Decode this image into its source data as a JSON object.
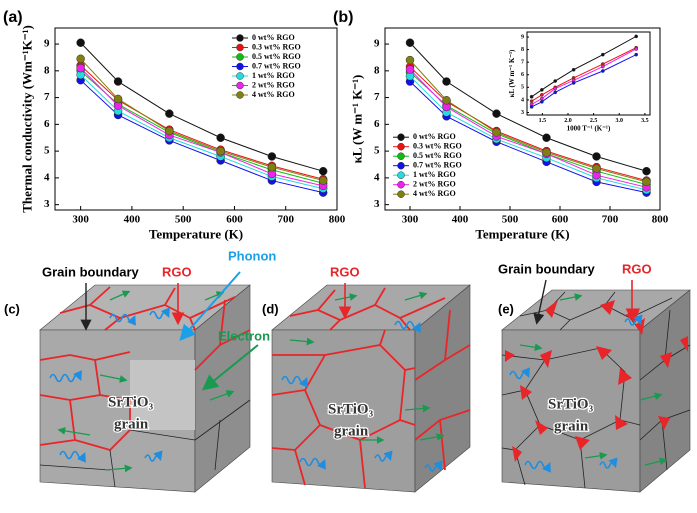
{
  "chart_data": [
    {
      "type": "line",
      "panel_label": "(a)",
      "xlabel": "Temperature (K)",
      "ylabel": "Thermal conductivity (Wm⁻¹K⁻¹)",
      "x": [
        300,
        373,
        473,
        573,
        673,
        773
      ],
      "xlim": [
        250,
        800
      ],
      "xticks": [
        300,
        400,
        500,
        600,
        700,
        800
      ],
      "ylim": [
        2.8,
        9.6
      ],
      "yticks": [
        3,
        4,
        5,
        6,
        7,
        8,
        9
      ],
      "legend": "upper right",
      "series": [
        {
          "name": "0 wt% RGO",
          "color": "#111111",
          "values": [
            9.05,
            7.6,
            6.4,
            5.5,
            4.8,
            4.25
          ]
        },
        {
          "name": "0.3 wt% RGO",
          "color": "#ee1111",
          "values": [
            8.2,
            6.9,
            5.8,
            5.05,
            4.45,
            3.95
          ]
        },
        {
          "name": "0.5 wt% RGO",
          "color": "#11bb11",
          "values": [
            8.0,
            6.75,
            5.7,
            4.95,
            4.3,
            3.8
          ]
        },
        {
          "name": "0.7 wt% RGO",
          "color": "#1111ee",
          "values": [
            7.65,
            6.35,
            5.4,
            4.65,
            3.9,
            3.45
          ]
        },
        {
          "name": "1 wt% RGO",
          "color": "#22dddd",
          "values": [
            7.85,
            6.5,
            5.5,
            4.8,
            4.05,
            3.6
          ]
        },
        {
          "name": "2 wt% RGO",
          "color": "#ee22ee",
          "values": [
            8.1,
            6.7,
            5.6,
            4.95,
            4.15,
            3.7
          ]
        },
        {
          "name": "4 wt% RGO",
          "color": "#808010",
          "values": [
            8.45,
            6.95,
            5.75,
            5.0,
            4.4,
            3.9
          ]
        }
      ]
    },
    {
      "type": "line",
      "panel_label": "(b)",
      "xlabel": "Temperature (K)",
      "ylabel": "κL (W m⁻¹ K⁻¹)",
      "x": [
        300,
        373,
        473,
        573,
        673,
        773
      ],
      "xlim": [
        250,
        800
      ],
      "xticks": [
        300,
        400,
        500,
        600,
        700,
        800
      ],
      "ylim": [
        2.8,
        9.6
      ],
      "yticks": [
        3,
        4,
        5,
        6,
        7,
        8,
        9
      ],
      "legend": "center left",
      "series": [
        {
          "name": "0 wt% RGO",
          "color": "#111111",
          "values": [
            9.05,
            7.6,
            6.4,
            5.5,
            4.8,
            4.25
          ]
        },
        {
          "name": "0.3 wt% RGO",
          "color": "#ee1111",
          "values": [
            8.15,
            6.85,
            5.75,
            5.0,
            4.4,
            3.9
          ]
        },
        {
          "name": "0.5 wt% RGO",
          "color": "#11bb11",
          "values": [
            7.95,
            6.7,
            5.65,
            4.9,
            4.25,
            3.75
          ]
        },
        {
          "name": "0.7 wt% RGO",
          "color": "#1111ee",
          "values": [
            7.6,
            6.3,
            5.35,
            4.6,
            3.85,
            3.45
          ]
        },
        {
          "name": "1 wt% RGO",
          "color": "#22dddd",
          "values": [
            7.8,
            6.45,
            5.45,
            4.75,
            4.0,
            3.55
          ]
        },
        {
          "name": "2 wt% RGO",
          "color": "#ee22ee",
          "values": [
            8.05,
            6.65,
            5.55,
            4.9,
            4.1,
            3.65
          ]
        },
        {
          "name": "4 wt% RGO",
          "color": "#808010",
          "values": [
            8.4,
            6.9,
            5.7,
            4.95,
            4.35,
            3.85
          ]
        }
      ]
    },
    {
      "type": "line",
      "xlabel": "1000 T⁻¹ (K⁻¹)",
      "ylabel": "κL (W m⁻¹ K⁻¹)",
      "x": [
        3.33,
        2.68,
        2.11,
        1.75,
        1.49,
        1.29
      ],
      "xlim": [
        1.2,
        3.6
      ],
      "xticks": [
        1.5,
        {
          "value": 2,
          "label": "2.0"
        },
        2.5,
        {
          "value": 3,
          "label": "3.0"
        },
        3.5
      ],
      "ylim": [
        2.8,
        9.4
      ],
      "yticks": [
        3,
        4,
        5,
        6,
        7,
        8,
        9
      ],
      "series": [
        {
          "color": "#111111",
          "values": [
            9.05,
            7.6,
            6.4,
            5.5,
            4.8,
            4.25
          ]
        },
        {
          "color": "#ee1111",
          "values": [
            8.15,
            6.85,
            5.75,
            5.0,
            4.4,
            3.9
          ]
        },
        {
          "color": "#ee22ee",
          "values": [
            8.05,
            6.65,
            5.55,
            4.9,
            4.1,
            3.65
          ]
        },
        {
          "color": "#1111ee",
          "values": [
            7.6,
            6.3,
            5.35,
            4.6,
            3.85,
            3.45
          ]
        }
      ]
    }
  ],
  "diagram": {
    "c": {
      "label": "(c)",
      "grain_boundary": "Grain boundary",
      "rgo": "RGO",
      "phonon": "Phonon",
      "electron": "Electron",
      "material": "SrTiO₃",
      "grain": "grain"
    },
    "d": {
      "label": "(d)",
      "rgo": "RGO",
      "material": "SrTiO₃",
      "grain": "grain"
    },
    "e": {
      "label": "(e)",
      "grain_boundary": "Grain boundary",
      "rgo": "RGO",
      "material": "SrTiO₃",
      "grain": "grain"
    }
  }
}
